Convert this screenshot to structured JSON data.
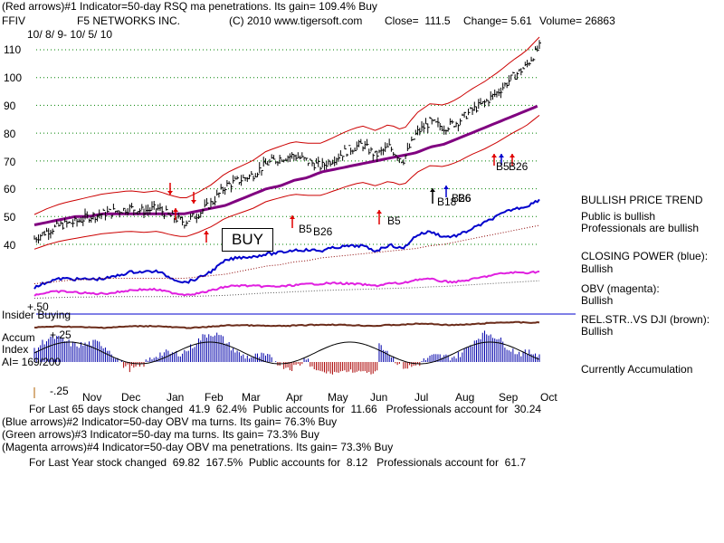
{
  "header": {
    "line1": "(Red arrows)#1 Indicator=50-day RSQ ma penetrations. Its gain= 109.4% Buy",
    "ticker": "FFIV",
    "company": "F5 NETWORKS INC.",
    "copyright": "(C) 2010 www.tigersoft.com",
    "close": "Close=  111.5",
    "change": "Change= 5.61",
    "volume": "Volume= 26863",
    "daterange": "10/ 8/ 9- 10/ 5/ 10"
  },
  "chart_data": {
    "type": "line",
    "title": "F5 NETWORKS INC. (FFIV)",
    "y_ticks": [
      "110",
      "100",
      "90",
      "80",
      "70",
      "60",
      "50",
      "40"
    ],
    "ylim": [
      38,
      114
    ],
    "x_ticks": [
      "Nov",
      "Dec",
      "Jan",
      "Feb",
      "Mar",
      "Apr",
      "May",
      "Jun",
      "Jul",
      "Aug",
      "Sep",
      "Oct"
    ],
    "series": [
      {
        "name": "Close",
        "color": "#000000",
        "values": [
          42,
          45,
          47,
          48,
          50,
          51,
          52,
          53,
          52,
          53,
          50,
          48,
          51,
          55,
          61,
          63,
          65,
          69,
          71,
          72,
          70,
          68,
          71,
          74,
          76,
          72,
          75,
          70,
          80,
          84,
          82,
          84,
          88,
          91,
          95,
          100,
          104,
          111
        ]
      },
      {
        "name": "50-day MA",
        "color": "#800080",
        "values": [
          47,
          48,
          49,
          50,
          50,
          51,
          51,
          51,
          51,
          51,
          51,
          51,
          52,
          53,
          54,
          56,
          58,
          60,
          61,
          63,
          64,
          66,
          67,
          68,
          69,
          70,
          71,
          72,
          73,
          75,
          76,
          78,
          80,
          82,
          84,
          86,
          88,
          90
        ]
      }
    ],
    "signals": [
      "B5",
      "B26",
      "B5",
      "B18",
      "B26",
      "B5",
      "B26",
      "B6"
    ],
    "buy_label": "BUY"
  },
  "lower_panel": {
    "insider_label": "Insider Buying",
    "plus50": "+.50",
    "plus25": "+.25",
    "minus25": "-.25",
    "accum_label": "Accum",
    "index_label": "Index",
    "ai_label": "AI= 169/200"
  },
  "legend": {
    "trend_title": "BULLISH PRICE TREND",
    "public": "Public is bullish",
    "professionals": "Professionals are bullish",
    "cp_title": "CLOSING POWER (blue):",
    "cp_value": "Bullish",
    "obv_title": "OBV (magenta):",
    "obv_value": "Bullish",
    "rel_title": "REL.STR..VS DJI (brown):",
    "rel_value": "Bullish",
    "accumulation": "Currently Accumulation"
  },
  "footer": {
    "line1": "For Last 65 days stock changed  41.9  62.4%  Public accounts for  11.66   Professionals account for  30.24",
    "line2": "(Blue arrows)#2 Indicator=50-day OBV ma turns. Its gain= 76.3% Buy",
    "line3": "(Green arrows)#3 Indicator=50-day ma turns. Its gain= 73.3% Buy",
    "line4": "(Magenta arrows)#4 Indicator=50-day OBV ma penetrations. Its gain= 73.3% Buy",
    "line5": "For Last Year stock changed  69.82  167.5%  Public accounts for  8.12   Professionals account for  61.7"
  },
  "colors": {
    "price": "#000000",
    "ma": "#800080",
    "band": "#cc0000",
    "closing_power": "#0000cc",
    "obv": "#e020e0",
    "relstr": "#6b2c1a",
    "accum_pos": "#0000aa",
    "accum_neg": "#aa0000"
  }
}
